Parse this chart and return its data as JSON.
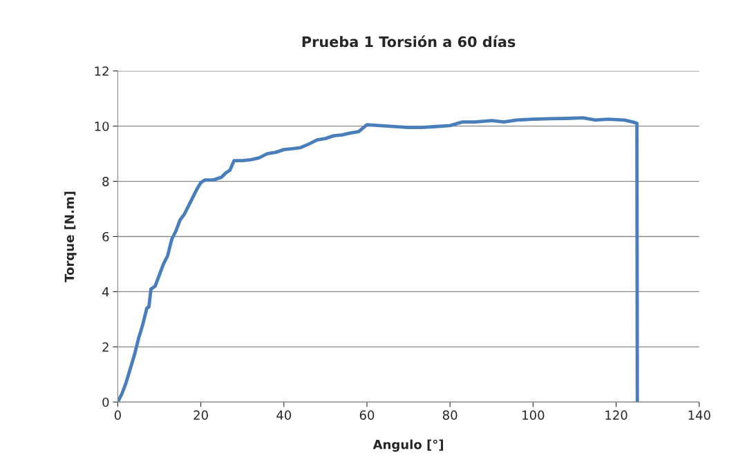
{
  "chart_data": {
    "type": "line",
    "title": "Prueba 1 Torsión a 60 días",
    "xlabel": "Angulo [°]",
    "ylabel": "Torque [N.m]",
    "xlim": [
      0,
      140
    ],
    "xticks": [
      0,
      20,
      40,
      60,
      80,
      100,
      120,
      140
    ],
    "ylim": [
      0,
      12
    ],
    "yticks": [
      0,
      2,
      4,
      6,
      8,
      10,
      12
    ],
    "grid": "y",
    "legend": false,
    "series": [
      {
        "color": "#4a7ebb",
        "x": [
          0,
          1,
          2,
          3,
          4,
          5,
          6,
          7,
          7.5,
          8,
          9,
          10,
          11,
          12,
          13,
          14,
          15,
          16,
          17,
          18,
          19,
          20,
          21,
          23,
          25,
          26,
          27,
          28,
          30,
          32,
          34,
          36,
          38,
          40,
          42,
          44,
          46,
          48,
          50,
          52,
          54,
          56,
          58,
          60,
          65,
          70,
          73,
          76,
          80,
          83,
          86,
          90,
          93,
          96,
          100,
          104,
          108,
          112,
          115,
          118,
          122,
          124,
          125,
          125.1
        ],
        "values": [
          0,
          0.3,
          0.7,
          1.2,
          1.7,
          2.3,
          2.8,
          3.4,
          3.45,
          4.1,
          4.2,
          4.6,
          5.0,
          5.3,
          5.9,
          6.2,
          6.6,
          6.8,
          7.1,
          7.4,
          7.7,
          7.95,
          8.05,
          8.05,
          8.15,
          8.3,
          8.4,
          8.75,
          8.75,
          8.78,
          8.85,
          9.0,
          9.05,
          9.15,
          9.18,
          9.22,
          9.35,
          9.5,
          9.55,
          9.65,
          9.68,
          9.75,
          9.8,
          10.05,
          10.0,
          9.95,
          9.95,
          9.98,
          10.02,
          10.15,
          10.15,
          10.2,
          10.15,
          10.22,
          10.25,
          10.27,
          10.28,
          10.3,
          10.22,
          10.25,
          10.22,
          10.15,
          10.1,
          0
        ]
      }
    ]
  }
}
